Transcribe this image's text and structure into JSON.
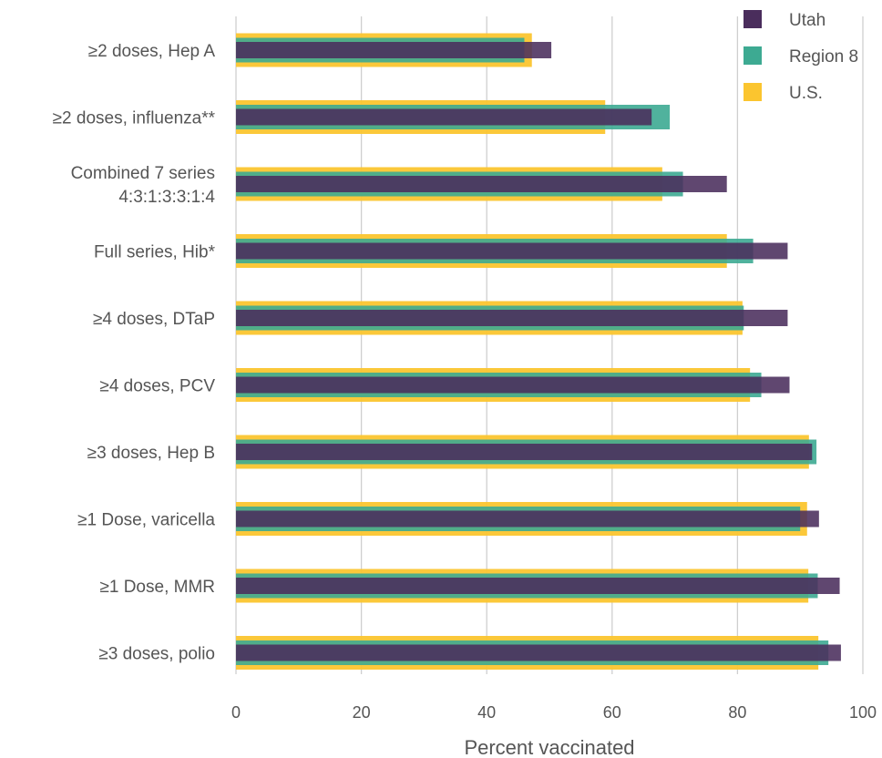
{
  "chart_data": {
    "type": "bar",
    "orientation": "horizontal",
    "xlabel": "Percent vaccinated",
    "xlim": [
      0,
      100
    ],
    "xticks": [
      0,
      20,
      40,
      60,
      80,
      100
    ],
    "grid": "vertical",
    "legend_position": "top-right",
    "categories": [
      [
        "≥2 doses, Hep A"
      ],
      [
        "≥2 doses, influenza**"
      ],
      [
        "Combined 7 series",
        "4:3:1:3:3:1:4"
      ],
      [
        "Full series, Hib*"
      ],
      [
        "≥4 doses, DTaP"
      ],
      [
        "≥4 doses, PCV"
      ],
      [
        "≥3 doses, Hep B"
      ],
      [
        "≥1 Dose, varicella"
      ],
      [
        "≥1 Dose, MMR"
      ],
      [
        "≥3 doses, polio"
      ]
    ],
    "series": [
      {
        "name": "U.S.",
        "color": "#fbc52f",
        "values": [
          47.2,
          58.9,
          68.0,
          78.3,
          80.8,
          82.0,
          91.4,
          91.1,
          91.3,
          92.9
        ]
      },
      {
        "name": "Region 8",
        "color": "#3daa92",
        "values": [
          46.0,
          69.2,
          71.3,
          82.5,
          81.0,
          83.8,
          92.6,
          90.0,
          92.8,
          94.5
        ]
      },
      {
        "name": "Utah",
        "color": "#4a2d5c",
        "values": [
          50.3,
          66.3,
          78.3,
          88.0,
          88.0,
          88.3,
          91.9,
          93.0,
          96.3,
          96.5
        ]
      }
    ]
  }
}
